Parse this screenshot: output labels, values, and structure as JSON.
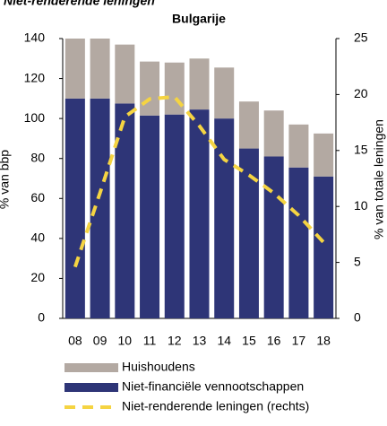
{
  "chart_data": {
    "type": "bar",
    "header": "Niet-renderende leningen",
    "title": "Bulgarije",
    "y_label": "% van bbp",
    "y2_label": "% van totale leningen",
    "categories": [
      "08",
      "09",
      "10",
      "11",
      "12",
      "13",
      "14",
      "15",
      "16",
      "17",
      "18"
    ],
    "series": [
      {
        "name": "Niet-financiële vennootschappen",
        "color": "#2e3577",
        "values": [
          110,
          110,
          107.5,
          101.5,
          102,
          104.5,
          100,
          85,
          81,
          75.5,
          71
        ]
      },
      {
        "name": "Huishoudens",
        "color": "#b3a9a2",
        "values": [
          30,
          30,
          29.5,
          27,
          26,
          25.5,
          25.5,
          23.5,
          23,
          21.5,
          21.5
        ]
      },
      {
        "name": "Niet-renderende leningen (rechts)",
        "color": "#f5d442",
        "axis": "y2",
        "type": "line",
        "values": [
          4.6,
          11.2,
          18,
          19.6,
          19.8,
          17.2,
          14.2,
          12.8,
          11.2,
          9.2,
          6.8
        ]
      }
    ],
    "stacked": true,
    "ylim": [
      0,
      140
    ],
    "yticks": [
      0,
      20,
      40,
      60,
      80,
      100,
      120,
      140
    ],
    "y2lim": [
      0,
      25
    ],
    "y2ticks": [
      0,
      5,
      10,
      15,
      20,
      25
    ]
  }
}
